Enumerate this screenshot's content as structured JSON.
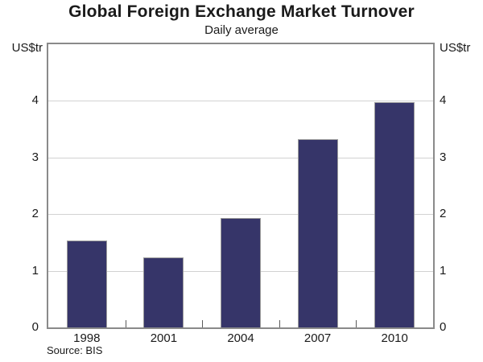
{
  "header": {
    "title": "Global Foreign Exchange Market Turnover",
    "subtitle": "Daily average"
  },
  "footer": {
    "source": "Source: BIS"
  },
  "chart_data": {
    "type": "bar",
    "title": "Global Foreign Exchange Market Turnover",
    "subtitle": "Daily average",
    "categories": [
      "1998",
      "2001",
      "2004",
      "2007",
      "2010"
    ],
    "values": [
      1.53,
      1.24,
      1.93,
      3.32,
      3.98
    ],
    "xlabel": "",
    "ylabel_left": "US$tr",
    "ylabel_right": "US$tr",
    "ylim": [
      0,
      5
    ],
    "yticks": [
      0,
      1,
      2,
      3,
      4
    ],
    "grid": true,
    "legend": "none",
    "source": "Source: BIS",
    "colors": {
      "bar_fill": "#363569",
      "bar_border": "#9b9b9b",
      "plot_border": "#8a8a8a",
      "gridline": "#d2d2d2",
      "text": "#1a1a1a"
    }
  }
}
